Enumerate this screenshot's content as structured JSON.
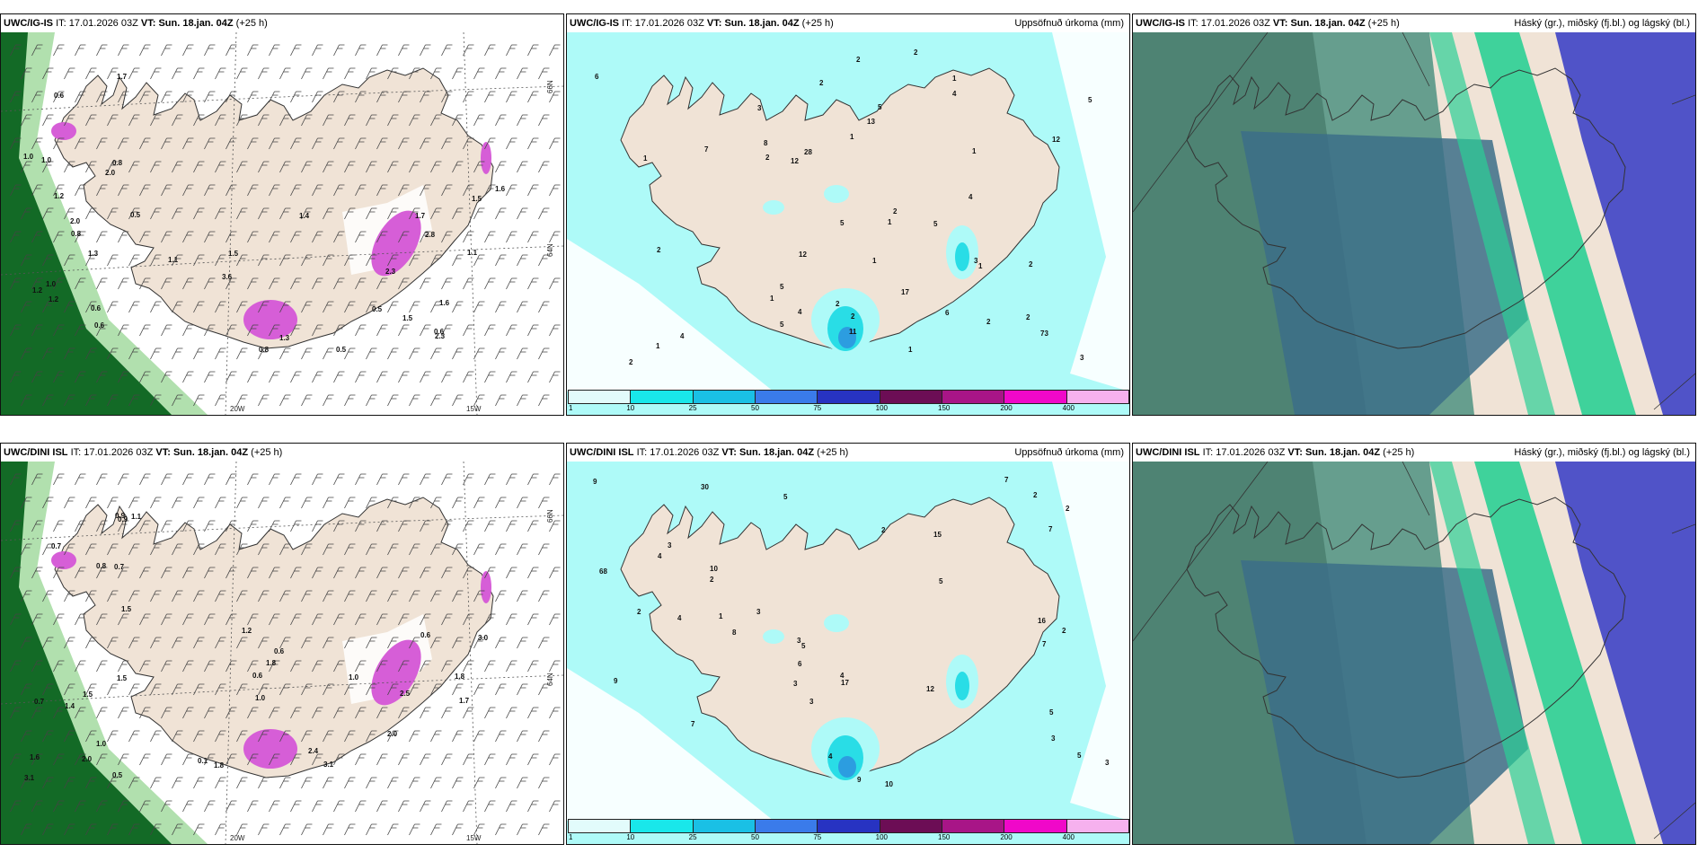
{
  "rows": [
    {
      "model": "UWC/IG-IS",
      "panels": [
        {
          "it_label": "IT:",
          "it": "17.01.2026 03Z",
          "vt_label": "VT:",
          "vt": "Sun. 18.jan. 04Z",
          "lead": "(+25 h)",
          "right": "",
          "lon_labels": [
            "20W",
            "15W"
          ],
          "lat_labels": [
            "66N",
            "64N"
          ],
          "values": [
            "0.6",
            "0.6",
            "1.0",
            "1.0",
            "0.8",
            "0.6",
            "0.5",
            "1.2",
            "0.8",
            "1.2",
            "1.2",
            "1.0",
            "2.0",
            "1.3",
            "2.0",
            "1.7",
            "1.1",
            "1.5",
            "1.6",
            "1.1",
            "0.6",
            "0.5",
            "0.8",
            "2.3",
            "2.3",
            "2.8",
            "3.6",
            "1.5",
            "0.5",
            "1.4",
            "1.5",
            "1.6",
            "1.7",
            "1.3"
          ]
        },
        {
          "it_label": "IT:",
          "it": "17.01.2026 03Z",
          "vt_label": "VT:",
          "vt": "Sun. 18.jan. 04Z",
          "lead": "(+25 h)",
          "right": "Uppsöfnuð úrkoma (mm)",
          "values": [
            "1",
            "2",
            "2",
            "1",
            "2",
            "2",
            "2",
            "1",
            "2",
            "1",
            "3",
            "2",
            "4",
            "2",
            "6",
            "8",
            "3",
            "2",
            "5",
            "5",
            "6",
            "4",
            "11",
            "5",
            "1",
            "4",
            "28",
            "13",
            "12",
            "17",
            "73",
            "12",
            "5",
            "2",
            "1",
            "1",
            "2",
            "1",
            "1",
            "2",
            "7",
            "5",
            "3",
            "5",
            "4",
            "12",
            "1"
          ],
          "colorbar_ticks": [
            "1",
            "10",
            "25",
            "50",
            "75",
            "100",
            "150",
            "200",
            "400"
          ]
        },
        {
          "it_label": "IT:",
          "it": "17.01.2026 03Z",
          "vt_label": "VT:",
          "vt": "Sun. 18.jan. 04Z",
          "lead": "(+25 h)",
          "right": "Háský (gr.), miðský (fj.bl.) og lágský (bl.)"
        }
      ]
    },
    {
      "model": "UWC/DINI ISL",
      "panels": [
        {
          "it_label": "IT:",
          "it": "17.01.2026 03Z",
          "vt_label": "VT:",
          "vt": "Sun. 18.jan. 04Z",
          "lead": "(+25 h)",
          "right": "",
          "lon_labels": [
            "20W",
            "15W"
          ],
          "lat_labels": [
            "66N",
            "64N"
          ],
          "values": [
            "0.9",
            "0.7",
            "1.1",
            "1.5",
            "0.7",
            "2.0",
            "0.9",
            "0.5",
            "1.0",
            "0.7",
            "1.5",
            "0.8",
            "1.6",
            "1.4",
            "1.5",
            "3.1",
            "2.5",
            "2.0",
            "1.8",
            "0.6",
            "0.6",
            "1.2",
            "3.0",
            "0.1",
            "1.8",
            "3.1",
            "1.0",
            "2.4",
            "1.7",
            "1.8",
            "0.6",
            "1.0"
          ]
        },
        {
          "it_label": "IT:",
          "it": "17.01.2026 03Z",
          "vt_label": "VT:",
          "vt": "Sun. 18.jan. 04Z",
          "lead": "(+25 h)",
          "right": "Uppsöfnuð úrkoma (mm)",
          "values": [
            "1",
            "2",
            "3",
            "4",
            "2",
            "5",
            "2",
            "7",
            "2",
            "7",
            "3",
            "2",
            "3",
            "3",
            "4",
            "4",
            "2",
            "7",
            "5",
            "4",
            "3",
            "10",
            "9",
            "5",
            "8",
            "5",
            "30",
            "16",
            "17",
            "12",
            "15",
            "68",
            "9",
            "9",
            "7",
            "3",
            "10",
            "6",
            "3",
            "5"
          ],
          "colorbar_ticks": [
            "1",
            "10",
            "25",
            "50",
            "75",
            "100",
            "150",
            "200",
            "400"
          ]
        },
        {
          "it_label": "IT:",
          "it": "17.01.2026 03Z",
          "vt_label": "VT:",
          "vt": "Sun. 18.jan. 04Z",
          "lead": "(+25 h)",
          "right": "Háský (gr.), miðský (fj.bl.) og lágský (bl.)"
        }
      ]
    }
  ],
  "colors": {
    "land": "#f0e3d6",
    "sea_precip_light": "#aefaf8",
    "precip_mid": "#29dde6",
    "precip_blue": "#2c9de0",
    "green_dark": "#136a26",
    "green_light": "#9ed89a",
    "magenta": "#d65ed7",
    "cloud_high": "#5e9a8a",
    "cloud_mid": "#3c6f88",
    "cloud_low": "#5053c8",
    "cloud_green": "#2bcf95",
    "colorbar": [
      "#e2fbfb",
      "#19e7ea",
      "#1ac0e5",
      "#3a7bea",
      "#2733c2",
      "#6c0d55",
      "#a81587",
      "#f008c9",
      "#f6b1ee"
    ]
  }
}
